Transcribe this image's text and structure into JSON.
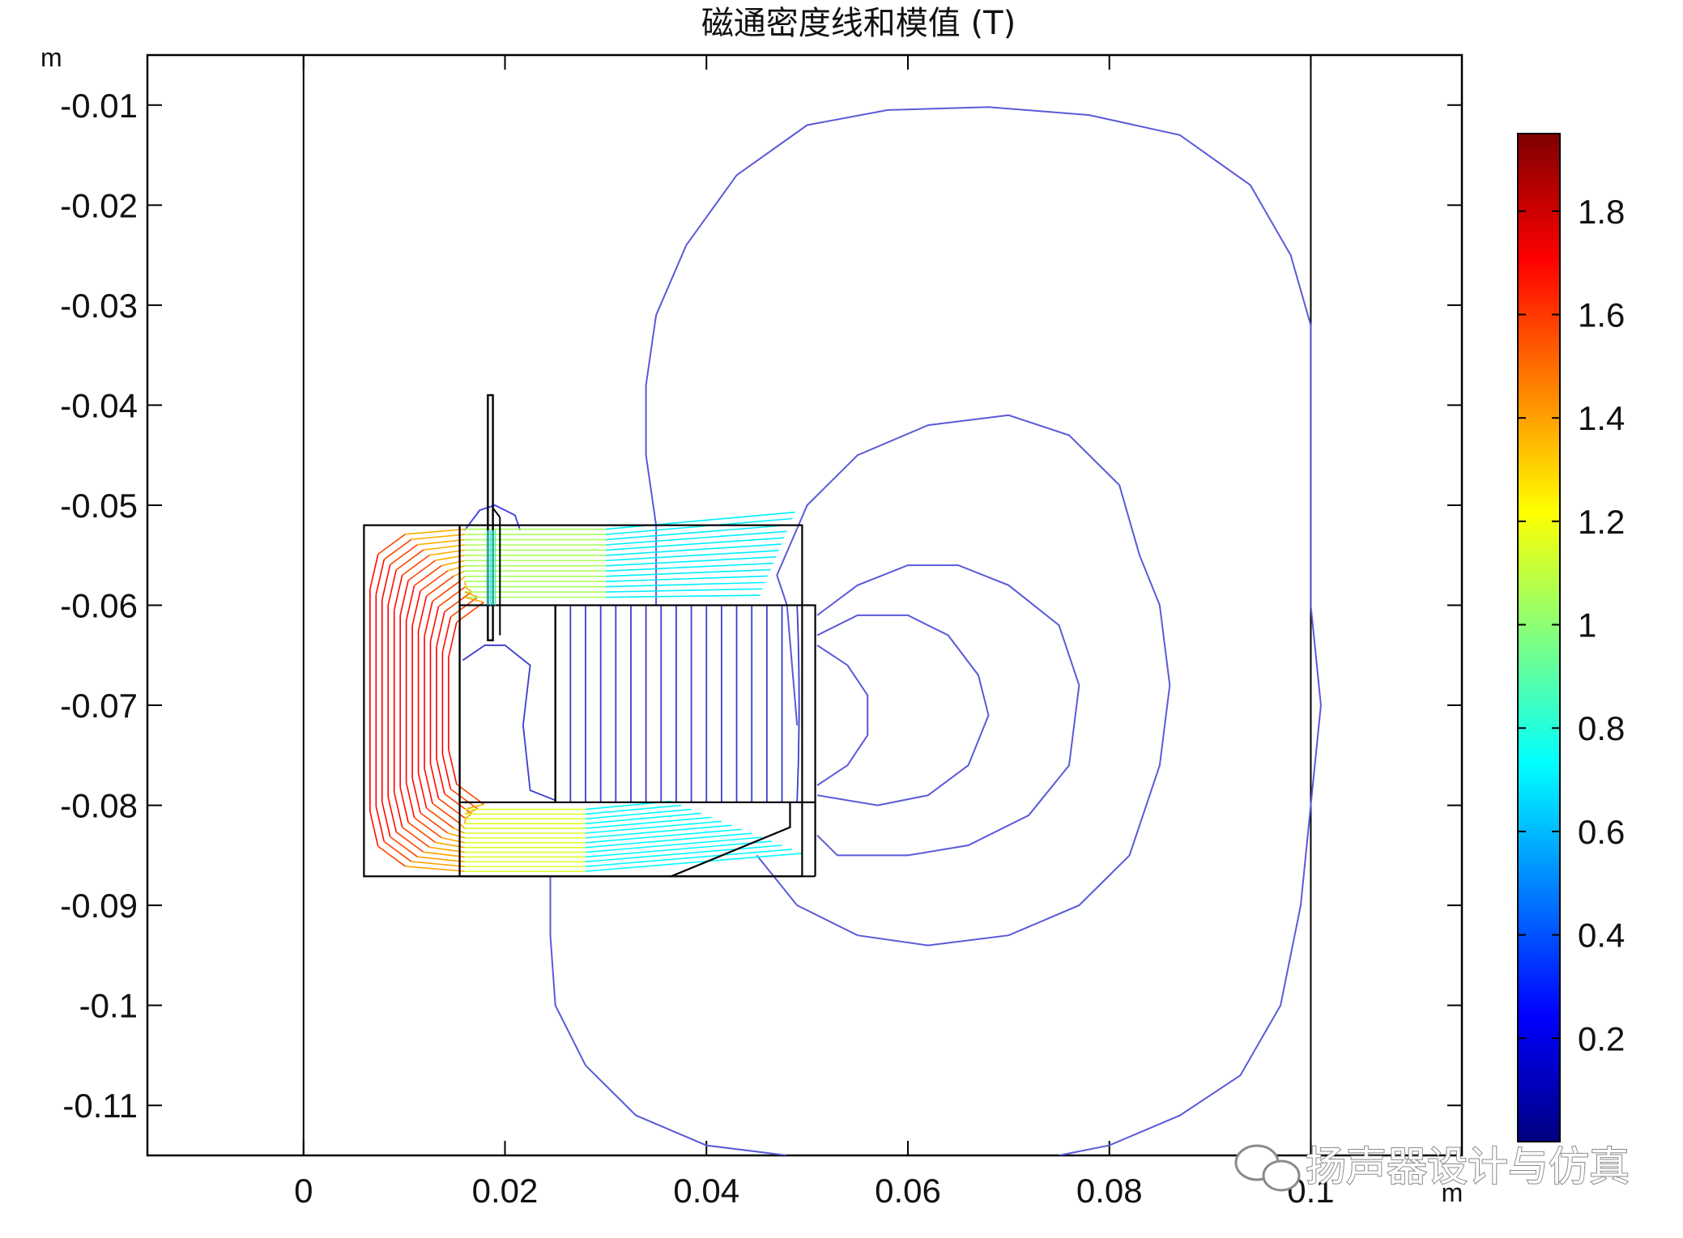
{
  "chart_data": {
    "type": "contour",
    "title": "磁通密度线和模值 (T)",
    "x_unit": "m",
    "y_unit": "m",
    "xlim": [
      -0.0155,
      0.115
    ],
    "ylim": [
      -0.115,
      -0.005
    ],
    "x_ticks": [
      0,
      0.02,
      0.04,
      0.06,
      0.08,
      0.1
    ],
    "x_tick_labels": [
      "0",
      "0.02",
      "0.04",
      "0.06",
      "0.08",
      "0.1"
    ],
    "y_ticks": [
      -0.01,
      -0.02,
      -0.03,
      -0.04,
      -0.05,
      -0.06,
      -0.07,
      -0.08,
      -0.09,
      -0.1,
      -0.11
    ],
    "y_tick_labels": [
      "-0.01",
      "-0.02",
      "-0.03",
      "-0.04",
      "-0.05",
      "-0.06",
      "-0.07",
      "-0.08",
      "-0.09",
      "-0.1",
      "-0.11"
    ],
    "vertical_lines_x": [
      0,
      0.1
    ],
    "colorbar": {
      "min": 0.0,
      "max": 1.95,
      "ticks": [
        0.2,
        0.4,
        0.6,
        0.8,
        1,
        1.2,
        1.4,
        1.6,
        1.8
      ],
      "tick_labels": [
        "0.2",
        "0.4",
        "0.6",
        "0.8",
        "1",
        "1.2",
        "1.4",
        "1.6",
        "1.8"
      ],
      "colormap": [
        "#00007f",
        "#0000ff",
        "#0080ff",
        "#00ffff",
        "#80ff80",
        "#ffff00",
        "#ff8000",
        "#ff0000",
        "#7f0000"
      ]
    },
    "geometry": {
      "outer_box": {
        "x": [
          0.006,
          0.0495
        ],
        "y": [
          -0.0871,
          -0.052
        ]
      },
      "gap_region": {
        "x": [
          0.0155,
          0.0495
        ],
        "y": [
          -0.0871,
          -0.0525
        ]
      },
      "magnet": {
        "x": [
          0.025,
          0.0508
        ],
        "y": [
          -0.0797,
          -0.06
        ]
      },
      "pole_cavity": {
        "x": [
          0.0155,
          0.025
        ],
        "y": [
          -0.0797,
          -0.06
        ]
      },
      "bottom_plate": {
        "x": [
          0.0155,
          0.0508
        ],
        "y": [
          -0.0871,
          -0.0797
        ]
      },
      "voice_coil": {
        "x": [
          0.0183,
          0.0188
        ],
        "y": [
          -0.0635,
          -0.039
        ]
      }
    },
    "field_lines_outer": [
      {
        "level": 0.05,
        "color": "#5a5ad8",
        "points": [
          [
            0.049,
            -0.072
          ],
          [
            0.048,
            -0.06
          ],
          [
            0.047,
            -0.057
          ],
          [
            0.05,
            -0.05
          ],
          [
            0.055,
            -0.045
          ],
          [
            0.062,
            -0.042
          ],
          [
            0.07,
            -0.041
          ],
          [
            0.076,
            -0.043
          ],
          [
            0.081,
            -0.048
          ],
          [
            0.083,
            -0.055
          ],
          [
            0.085,
            -0.06
          ],
          [
            0.086,
            -0.068
          ],
          [
            0.085,
            -0.076
          ],
          [
            0.082,
            -0.085
          ],
          [
            0.077,
            -0.09
          ],
          [
            0.07,
            -0.093
          ],
          [
            0.062,
            -0.094
          ],
          [
            0.055,
            -0.093
          ],
          [
            0.049,
            -0.09
          ],
          [
            0.045,
            -0.085
          ]
        ]
      },
      {
        "level": 0.08,
        "color": "#5a5ad8",
        "points": [
          [
            0.051,
            -0.061
          ],
          [
            0.055,
            -0.058
          ],
          [
            0.06,
            -0.056
          ],
          [
            0.065,
            -0.056
          ],
          [
            0.07,
            -0.058
          ],
          [
            0.075,
            -0.062
          ],
          [
            0.077,
            -0.068
          ],
          [
            0.076,
            -0.076
          ],
          [
            0.072,
            -0.081
          ],
          [
            0.066,
            -0.084
          ],
          [
            0.06,
            -0.085
          ],
          [
            0.053,
            -0.085
          ],
          [
            0.051,
            -0.083
          ]
        ]
      },
      {
        "level": 0.12,
        "color": "#5a5ad8",
        "points": [
          [
            0.051,
            -0.063
          ],
          [
            0.055,
            -0.061
          ],
          [
            0.06,
            -0.061
          ],
          [
            0.064,
            -0.063
          ],
          [
            0.067,
            -0.067
          ],
          [
            0.068,
            -0.071
          ],
          [
            0.066,
            -0.076
          ],
          [
            0.062,
            -0.079
          ],
          [
            0.057,
            -0.08
          ],
          [
            0.051,
            -0.079
          ]
        ]
      },
      {
        "level": 0.18,
        "color": "#5a5ad8",
        "points": [
          [
            0.051,
            -0.064
          ],
          [
            0.054,
            -0.066
          ],
          [
            0.056,
            -0.069
          ],
          [
            0.056,
            -0.073
          ],
          [
            0.054,
            -0.076
          ],
          [
            0.051,
            -0.078
          ]
        ]
      },
      {
        "level": 0.03,
        "color": "#5a5ad8",
        "points": [
          [
            0.035,
            -0.06
          ],
          [
            0.035,
            -0.052
          ],
          [
            0.034,
            -0.045
          ],
          [
            0.034,
            -0.038
          ],
          [
            0.035,
            -0.031
          ],
          [
            0.038,
            -0.024
          ],
          [
            0.043,
            -0.017
          ],
          [
            0.05,
            -0.012
          ],
          [
            0.058,
            -0.0105
          ],
          [
            0.068,
            -0.0102
          ],
          [
            0.078,
            -0.011
          ],
          [
            0.087,
            -0.013
          ],
          [
            0.094,
            -0.018
          ],
          [
            0.098,
            -0.025
          ],
          [
            0.1,
            -0.032
          ],
          [
            0.1,
            -0.04
          ],
          [
            0.1,
            -0.05
          ],
          [
            0.1,
            -0.06
          ],
          [
            0.101,
            -0.07
          ],
          [
            0.1,
            -0.08
          ],
          [
            0.099,
            -0.09
          ],
          [
            0.097,
            -0.1
          ],
          [
            0.093,
            -0.107
          ],
          [
            0.087,
            -0.111
          ],
          [
            0.08,
            -0.114
          ],
          [
            0.075,
            -0.115
          ]
        ]
      },
      {
        "level": 0.03,
        "color": "#5a5ad8",
        "points": [
          [
            0.048,
            -0.115
          ],
          [
            0.04,
            -0.114
          ],
          [
            0.033,
            -0.111
          ],
          [
            0.028,
            -0.106
          ],
          [
            0.025,
            -0.1
          ],
          [
            0.0245,
            -0.093
          ],
          [
            0.0245,
            -0.087
          ]
        ]
      },
      {
        "level": 0.4,
        "color": "#4a4ae0",
        "points": [
          [
            0.016,
            -0.0525
          ],
          [
            0.0175,
            -0.0505
          ],
          [
            0.019,
            -0.05
          ],
          [
            0.021,
            -0.051
          ],
          [
            0.0215,
            -0.0525
          ]
        ]
      }
    ],
    "magnet_lines_x": [
      0.0265,
      0.028,
      0.0295,
      0.031,
      0.0325,
      0.034,
      0.0355,
      0.037,
      0.0385,
      0.04,
      0.0415,
      0.043,
      0.0445,
      0.046,
      0.0475,
      0.049
    ],
    "magnet_lines_color": "#3c3ccc",
    "yoke_lines_count": 14,
    "watermark": "扬声器设计与仿真"
  }
}
